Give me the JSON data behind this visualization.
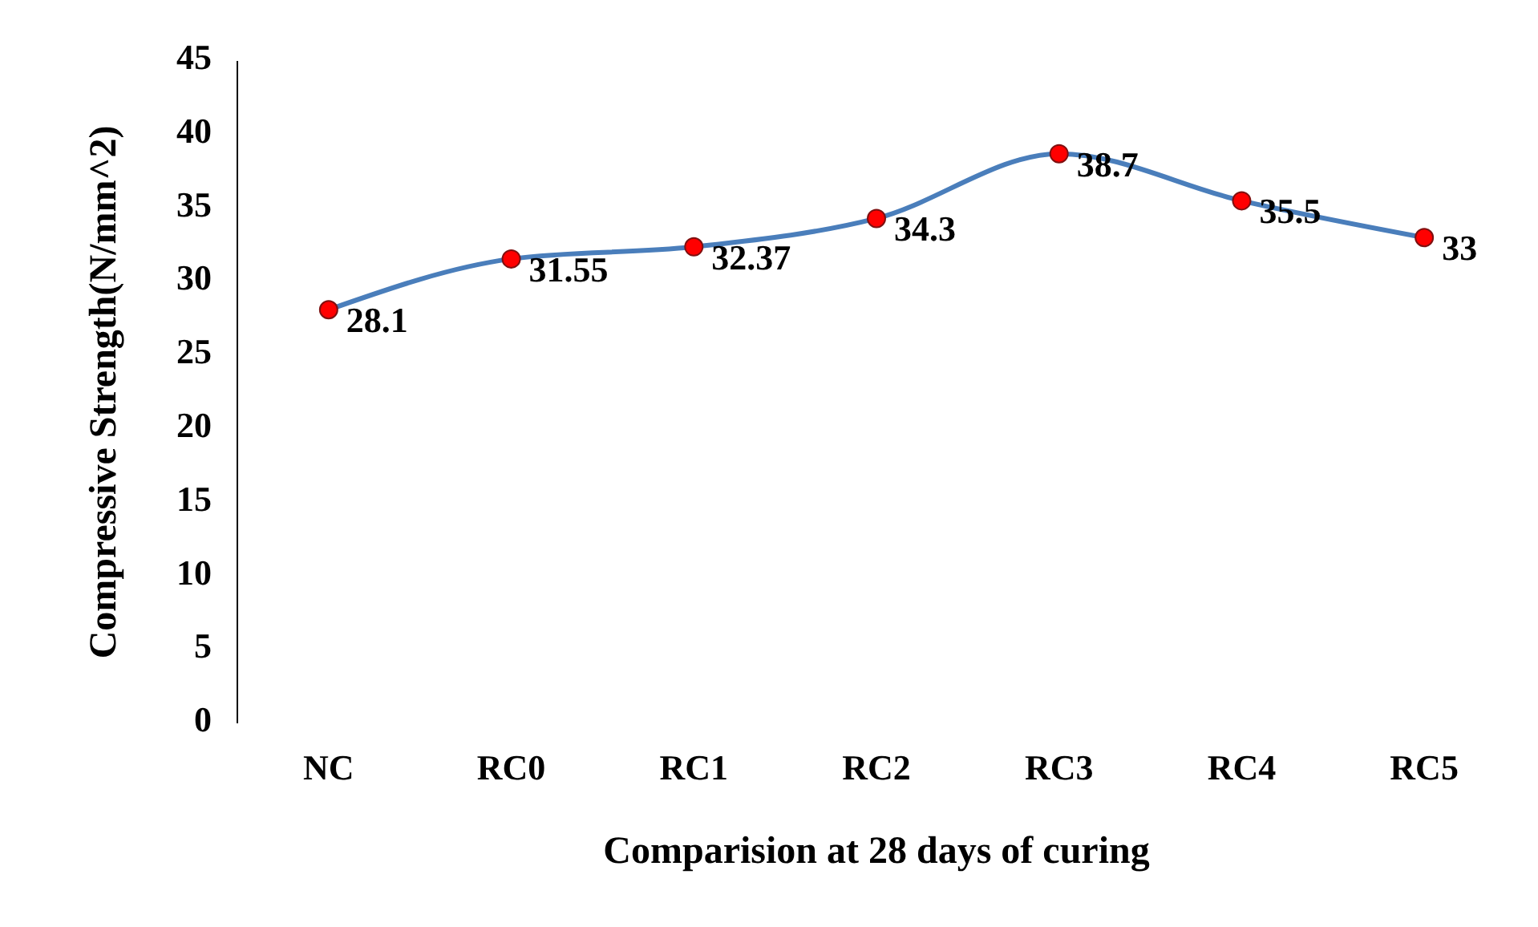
{
  "chart_data": {
    "type": "line",
    "xlabel": "Comparision at 28 days of curing",
    "ylabel": "Compressive Strength(N/mm^2)",
    "categories": [
      "NC",
      "RC0",
      "RC1",
      "RC2",
      "RC3",
      "RC4",
      "RC5"
    ],
    "series": [
      {
        "color": "#4a7ebb",
        "values": [
          28.1,
          31.55,
          32.37,
          34.3,
          38.7,
          35.5,
          33
        ]
      }
    ],
    "ylim": [
      0,
      45
    ],
    "yticks": [
      0,
      5,
      10,
      15,
      20,
      25,
      30,
      35,
      40,
      45
    ],
    "grid": false,
    "marker": "circle",
    "line_style": "solid",
    "data_labels": true
  }
}
